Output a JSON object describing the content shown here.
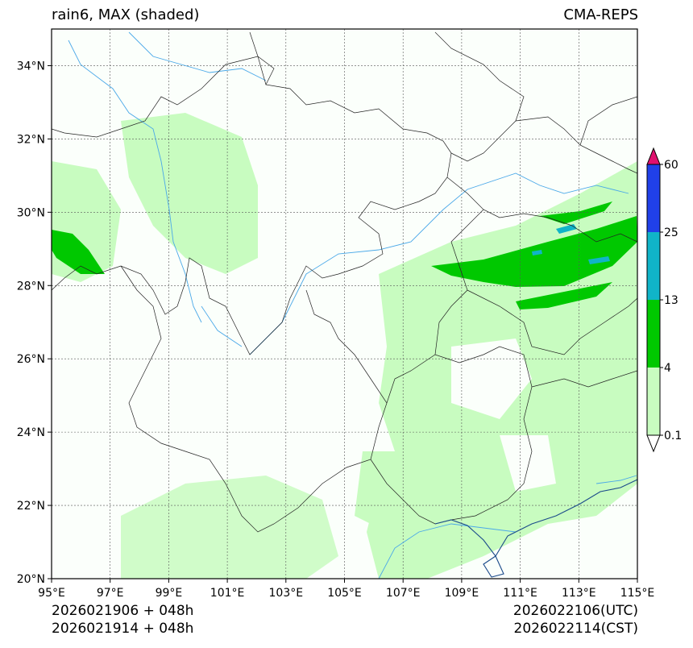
{
  "header": {
    "title_left": "rain6, MAX (shaded)",
    "title_right": "CMA-REPS"
  },
  "footer": {
    "init_utc": "2026021906  +  048h",
    "init_cst": "2026021914  +  048h",
    "valid_utc": "2026022106(UTC)",
    "valid_cst": "2026022114(CST)"
  },
  "map": {
    "lon_ticks": [
      "95°E",
      "97°E",
      "99°E",
      "101°E",
      "103°E",
      "105°E",
      "107°E",
      "109°E",
      "111°E",
      "113°E",
      "115°E"
    ],
    "lat_ticks": [
      "20°N",
      "22°N",
      "24°N",
      "26°N",
      "28°N",
      "30°N",
      "32°N",
      "34°N"
    ],
    "lon_range": [
      95,
      115
    ],
    "lat_range": [
      20,
      35
    ]
  },
  "colorbar": {
    "levels": [
      "0.1",
      "4",
      "13",
      "25",
      "60"
    ],
    "colors": {
      "under": "#ffffff",
      "c1": "#c8fcc0",
      "c2": "#00c800",
      "c3": "#10b4c8",
      "c4": "#2040e8",
      "over": "#e0106e"
    }
  }
}
